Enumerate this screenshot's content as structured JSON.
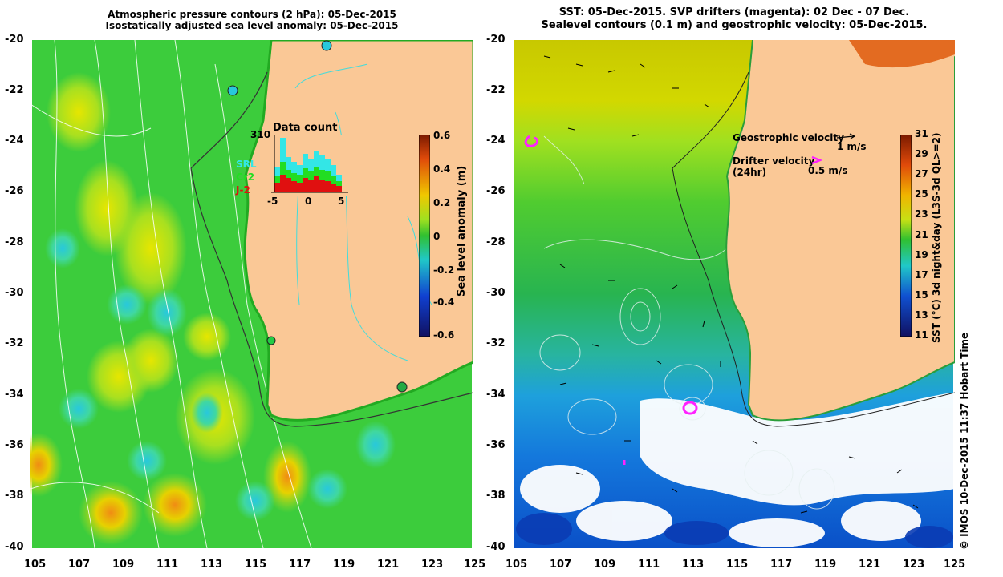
{
  "left_panel": {
    "title_line1": "Atmospheric pressure contours (2 hPa): 05-Dec-2015",
    "title_line2": "Isostatically adjusted sea level anomaly: 05-Dec-2015",
    "y_ticks": [
      "-20",
      "-22",
      "-24",
      "-26",
      "-28",
      "-30",
      "-32",
      "-34",
      "-36",
      "-38",
      "-40"
    ],
    "x_ticks": [
      "105",
      "107",
      "109",
      "111",
      "113",
      "115",
      "117",
      "119",
      "121",
      "123",
      "125"
    ],
    "colorbar": {
      "label": "Sea level anomaly (m)",
      "ticks": [
        "0.6",
        "0.4",
        "0.2",
        "0",
        "-0.2",
        "-0.4",
        "-0.6"
      ]
    },
    "inset": {
      "title": "Data count",
      "max_label": "310",
      "x_ticks": [
        "-5",
        "0",
        "5"
      ],
      "legend": [
        {
          "label": "SRL",
          "color": "#33e6e6"
        },
        {
          "label": "Cr2",
          "color": "#22dd22"
        },
        {
          "label": "J-2",
          "color": "#e01010"
        }
      ]
    }
  },
  "right_panel": {
    "title_line1": "SST: 05-Dec-2015. SVP drifters (magenta): 02 Dec - 07 Dec.",
    "title_line2": "Sealevel contours (0.1 m) and geostrophic velocity: 05-Dec-2015.",
    "y_ticks": [
      "-20",
      "-22",
      "-24",
      "-26",
      "-28",
      "-30",
      "-32",
      "-34",
      "-36",
      "-38",
      "-40"
    ],
    "x_ticks": [
      "105",
      "107",
      "109",
      "111",
      "113",
      "115",
      "117",
      "119",
      "121",
      "123",
      "125"
    ],
    "legend": {
      "geo_label": "Geostrophic velocity",
      "geo_scale": "1 m/s",
      "drifter_label": "Drifter velocity",
      "drifter_sub": "(24hr)",
      "drifter_scale": "0.5 m/s"
    },
    "colorbar": {
      "label": "SST (°C) 3d night&day (L3S-3d QL>=2)",
      "ticks": [
        "31",
        "29",
        "27",
        "25",
        "23",
        "21",
        "19",
        "17",
        "15",
        "13",
        "11"
      ]
    }
  },
  "credit": "© IMOS 10-Dec-2015 11:37 Hobart Time",
  "colors": {
    "land": "#fac896",
    "ocean_green": "#3ccc3c",
    "drifter": "#ff22ff"
  }
}
